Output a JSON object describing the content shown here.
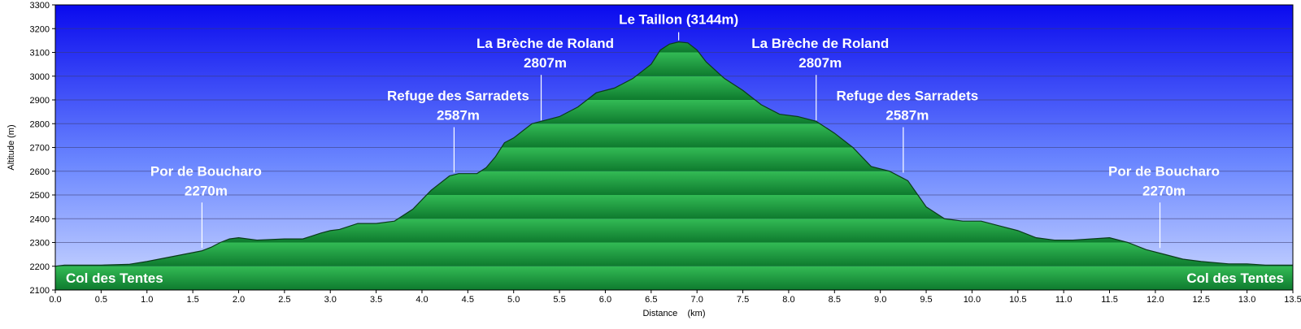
{
  "chart_data": {
    "type": "area",
    "xlabel": "Distance    (km)",
    "ylabel": "Altitude (m)",
    "xlim": [
      0,
      13.5
    ],
    "ylim": [
      2100,
      3300
    ],
    "x_ticks": [
      "0.0",
      "0.5",
      "1.0",
      "1.5",
      "2.0",
      "2.5",
      "3.0",
      "3.5",
      "4.0",
      "4.5",
      "5.0",
      "5.5",
      "6.0",
      "6.5",
      "7.0",
      "7.5",
      "8.0",
      "8.5",
      "9.0",
      "9.5",
      "10.0",
      "10.5",
      "11.0",
      "11.5",
      "12.0",
      "12.5",
      "13.0",
      "13.5"
    ],
    "y_ticks": [
      "2100",
      "2200",
      "2300",
      "2400",
      "2500",
      "2600",
      "2700",
      "2800",
      "2900",
      "3000",
      "3100",
      "3200",
      "3300"
    ],
    "grid": true,
    "colors": {
      "sky_top": "#0a0aee",
      "sky_bottom": "#ccd8ff",
      "terrain_light": "#33bb55",
      "terrain_dark": "#0e7a2e",
      "outline": "#0b3a1a"
    },
    "series": [
      {
        "x": [
          0.0,
          0.1,
          0.3,
          0.5,
          0.8,
          1.0,
          1.2,
          1.4,
          1.6,
          1.7,
          1.8,
          1.9,
          2.0,
          2.2,
          2.5,
          2.7,
          2.9,
          3.0,
          3.1,
          3.3,
          3.5,
          3.7,
          3.9,
          4.1,
          4.3,
          4.4,
          4.5,
          4.6,
          4.7,
          4.8,
          4.9,
          5.0,
          5.1,
          5.2,
          5.3,
          5.5,
          5.7,
          5.9,
          6.1,
          6.3,
          6.5,
          6.6,
          6.7,
          6.8,
          6.9,
          7.0,
          7.1,
          7.3,
          7.5,
          7.7,
          7.9,
          8.1,
          8.3,
          8.5,
          8.7,
          8.9,
          9.1,
          9.3,
          9.5,
          9.7,
          9.9,
          10.1,
          10.3,
          10.5,
          10.7,
          10.9,
          11.1,
          11.3,
          11.5,
          11.7,
          11.9,
          12.1,
          12.3,
          12.5,
          12.8,
          13.0,
          13.2,
          13.5
        ],
        "y": [
          2200,
          2205,
          2205,
          2205,
          2208,
          2220,
          2235,
          2250,
          2265,
          2280,
          2300,
          2315,
          2320,
          2310,
          2315,
          2315,
          2340,
          2350,
          2355,
          2380,
          2380,
          2390,
          2440,
          2520,
          2580,
          2590,
          2590,
          2590,
          2615,
          2660,
          2720,
          2740,
          2770,
          2800,
          2810,
          2830,
          2870,
          2930,
          2950,
          2990,
          3050,
          3110,
          3135,
          3144,
          3140,
          3110,
          3060,
          2990,
          2940,
          2880,
          2840,
          2830,
          2810,
          2760,
          2700,
          2620,
          2600,
          2560,
          2450,
          2400,
          2390,
          2390,
          2370,
          2350,
          2320,
          2310,
          2310,
          2315,
          2320,
          2300,
          2270,
          2250,
          2230,
          2220,
          2210,
          2210,
          2205,
          2205
        ]
      }
    ],
    "annotations": [
      {
        "text": "Le Taillon (3144m)",
        "x": 6.8,
        "y": 3144
      },
      {
        "text": "La Brèche de Roland",
        "sub": "2807m",
        "x": 5.3,
        "y": 2807
      },
      {
        "text": "La Brèche de Roland",
        "sub": "2807m",
        "x": 8.3,
        "y": 2807
      },
      {
        "text": "Refuge des Sarradets",
        "sub": "2587m",
        "x": 4.35,
        "y": 2587
      },
      {
        "text": "Refuge des Sarradets",
        "sub": "2587m",
        "x": 9.25,
        "y": 2587
      },
      {
        "text": "Por de Boucharo",
        "sub": "2270m",
        "x": 1.6,
        "y": 2270
      },
      {
        "text": "Por de Boucharo",
        "sub": "2270m",
        "x": 12.05,
        "y": 2270
      },
      {
        "text": "Col des Tentes",
        "x": 0.0,
        "y": 2200
      },
      {
        "text": "Col des Tentes",
        "x": 13.5,
        "y": 2200
      }
    ]
  }
}
